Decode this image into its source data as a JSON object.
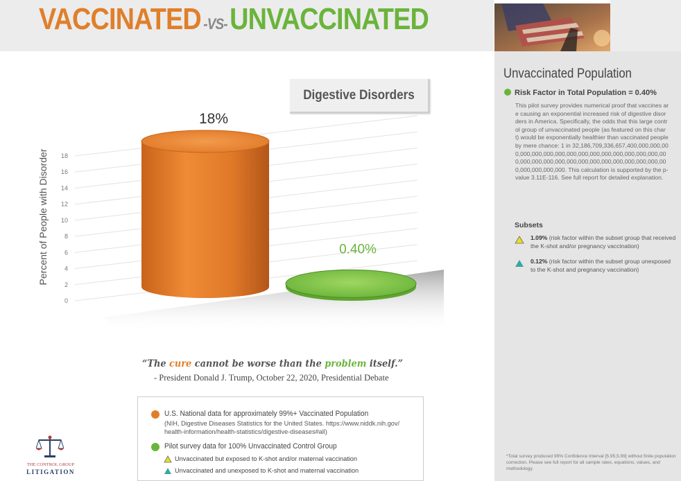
{
  "header": {
    "title_vaccinated": "VACCINATED",
    "title_vs": "-VS-",
    "title_unvaccinated": "UNVACCINATED"
  },
  "colors": {
    "vaccinated": "#e07f2a",
    "unvaccinated": "#6ab43b",
    "subset_yellow": "#e8e020",
    "subset_teal": "#3aa6a0"
  },
  "chart_data": {
    "type": "bar",
    "title": "Digestive Disorders",
    "ylabel": "Percent of People with Disorder",
    "xlabel": "",
    "ylim": [
      0,
      18
    ],
    "yticks": [
      0,
      2,
      4,
      6,
      8,
      10,
      12,
      14,
      16,
      18
    ],
    "categories": [
      "Vaccinated",
      "Unvaccinated"
    ],
    "values": [
      18,
      0.4
    ],
    "data_labels": [
      "18%",
      "0.40%"
    ],
    "grid": true
  },
  "quote": {
    "open": "“The ",
    "cure": "cure",
    "mid": " cannot be worse than the ",
    "problem": "problem",
    "close": " itself.”",
    "attribution": "- President Donald J. Trump, October 22, 2020, Presidential Debate"
  },
  "legend": {
    "vaccinated_label": "U.S. National data for approximately 99%+ Vaccinated Population",
    "vaccinated_source_line1": "(NIH, Digestive Diseases Statistics for the United States. https://www.niddk.nih.gov/",
    "vaccinated_source_line2": "health-information/health-statistics/digestive-diseases#all)",
    "unvaccinated_label": "Pilot survey data for 100% Unvaccinated Control Group",
    "subset1_label": "Unvaccinated but exposed to K-shot and/or maternal vaccination",
    "subset2_label": "Unvaccinated and unexposed to K-shot and maternal vaccination"
  },
  "logo": {
    "line1": "THE CONTROL GROUP",
    "line2": "LITIGATION"
  },
  "sidebar": {
    "title": "Unvaccinated Population",
    "risk_factor": "Risk Factor in Total Population = 0.40%",
    "body": "This pilot survey provides numerical proof that vaccines are causing an exponential increased risk of digestive disorders in America. Specifically, the odds that this large control group of unvaccinated people (as featured on this chart) would be exponentially healthier than vaccinated people by mere chance: 1 in 32,186,709,336,657,400,000,000,000,000,000,000,000,000,000,000,000,000,000,000,000,000,000,000,000,000,000,000,000,000,000,000,000,000,000,000,000,000,000. This calculation is supported by the p-value 3.11E-116. See full report for detailed explanation.",
    "subsets_heading": "Subsets",
    "subset1_value": "1.09%",
    "subset1_text": " (risk factor within the subset group that received the K-shot and/or pregnancy vaccination)",
    "subset2_value": "0.12%",
    "subset2_text": " (risk factor within the subset group unexposed to the K-shot and pregnancy vaccination)",
    "footnote": "*Total survey produced 99% Confidence Interval [5.95,5.99] without finite population correction. Please see full report for all sample rates, equations, values, and methodology."
  }
}
